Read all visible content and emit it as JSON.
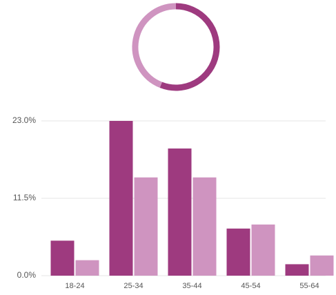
{
  "chart_data": [
    {
      "type": "pie",
      "donut": true,
      "values": [
        56,
        44
      ],
      "colors": [
        "#9e3a7f",
        "#cf94c0"
      ]
    },
    {
      "type": "bar",
      "categories": [
        "18-24",
        "25-34",
        "35-44",
        "45-54",
        "55-64"
      ],
      "series": [
        {
          "color": "#9e3a7f",
          "values": [
            5.2,
            23.0,
            18.9,
            7.0,
            1.7
          ]
        },
        {
          "color": "#cf94c0",
          "values": [
            2.3,
            14.6,
            14.6,
            7.6,
            3.0
          ]
        }
      ],
      "ylim": [
        0,
        23
      ],
      "yticks": [
        {
          "value": 0,
          "label": "0.0%"
        },
        {
          "value": 11.5,
          "label": "11.5%"
        },
        {
          "value": 23,
          "label": "23.0%"
        }
      ],
      "grid": true
    }
  ]
}
